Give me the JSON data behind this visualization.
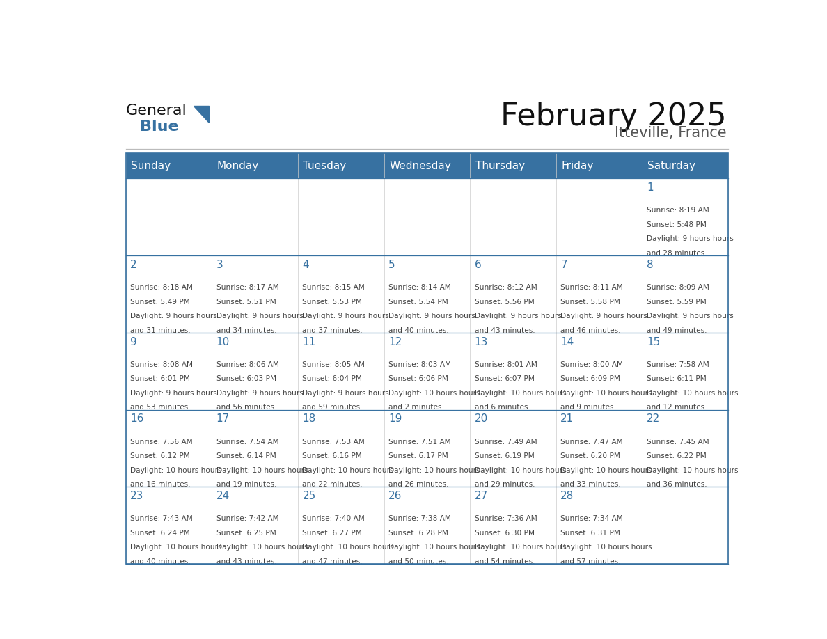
{
  "title": "February 2025",
  "subtitle": "Itteville, France",
  "days_of_week": [
    "Sunday",
    "Monday",
    "Tuesday",
    "Wednesday",
    "Thursday",
    "Friday",
    "Saturday"
  ],
  "header_bg": "#3771a1",
  "header_text_color": "#ffffff",
  "border_color": "#3771a1",
  "day_number_color": "#3771a1",
  "cell_text_color": "#444444",
  "title_color": "#111111",
  "subtitle_color": "#555555",
  "logo_general_color": "#111111",
  "logo_blue_color": "#3771a1",
  "calendar_data": [
    [
      null,
      null,
      null,
      null,
      null,
      null,
      {
        "day": 1,
        "sunrise": "8:19 AM",
        "sunset": "5:48 PM",
        "daylight": "9 hours and 28 minutes"
      }
    ],
    [
      {
        "day": 2,
        "sunrise": "8:18 AM",
        "sunset": "5:49 PM",
        "daylight": "9 hours and 31 minutes"
      },
      {
        "day": 3,
        "sunrise": "8:17 AM",
        "sunset": "5:51 PM",
        "daylight": "9 hours and 34 minutes"
      },
      {
        "day": 4,
        "sunrise": "8:15 AM",
        "sunset": "5:53 PM",
        "daylight": "9 hours and 37 minutes"
      },
      {
        "day": 5,
        "sunrise": "8:14 AM",
        "sunset": "5:54 PM",
        "daylight": "9 hours and 40 minutes"
      },
      {
        "day": 6,
        "sunrise": "8:12 AM",
        "sunset": "5:56 PM",
        "daylight": "9 hours and 43 minutes"
      },
      {
        "day": 7,
        "sunrise": "8:11 AM",
        "sunset": "5:58 PM",
        "daylight": "9 hours and 46 minutes"
      },
      {
        "day": 8,
        "sunrise": "8:09 AM",
        "sunset": "5:59 PM",
        "daylight": "9 hours and 49 minutes"
      }
    ],
    [
      {
        "day": 9,
        "sunrise": "8:08 AM",
        "sunset": "6:01 PM",
        "daylight": "9 hours and 53 minutes"
      },
      {
        "day": 10,
        "sunrise": "8:06 AM",
        "sunset": "6:03 PM",
        "daylight": "9 hours and 56 minutes"
      },
      {
        "day": 11,
        "sunrise": "8:05 AM",
        "sunset": "6:04 PM",
        "daylight": "9 hours and 59 minutes"
      },
      {
        "day": 12,
        "sunrise": "8:03 AM",
        "sunset": "6:06 PM",
        "daylight": "10 hours and 2 minutes"
      },
      {
        "day": 13,
        "sunrise": "8:01 AM",
        "sunset": "6:07 PM",
        "daylight": "10 hours and 6 minutes"
      },
      {
        "day": 14,
        "sunrise": "8:00 AM",
        "sunset": "6:09 PM",
        "daylight": "10 hours and 9 minutes"
      },
      {
        "day": 15,
        "sunrise": "7:58 AM",
        "sunset": "6:11 PM",
        "daylight": "10 hours and 12 minutes"
      }
    ],
    [
      {
        "day": 16,
        "sunrise": "7:56 AM",
        "sunset": "6:12 PM",
        "daylight": "10 hours and 16 minutes"
      },
      {
        "day": 17,
        "sunrise": "7:54 AM",
        "sunset": "6:14 PM",
        "daylight": "10 hours and 19 minutes"
      },
      {
        "day": 18,
        "sunrise": "7:53 AM",
        "sunset": "6:16 PM",
        "daylight": "10 hours and 22 minutes"
      },
      {
        "day": 19,
        "sunrise": "7:51 AM",
        "sunset": "6:17 PM",
        "daylight": "10 hours and 26 minutes"
      },
      {
        "day": 20,
        "sunrise": "7:49 AM",
        "sunset": "6:19 PM",
        "daylight": "10 hours and 29 minutes"
      },
      {
        "day": 21,
        "sunrise": "7:47 AM",
        "sunset": "6:20 PM",
        "daylight": "10 hours and 33 minutes"
      },
      {
        "day": 22,
        "sunrise": "7:45 AM",
        "sunset": "6:22 PM",
        "daylight": "10 hours and 36 minutes"
      }
    ],
    [
      {
        "day": 23,
        "sunrise": "7:43 AM",
        "sunset": "6:24 PM",
        "daylight": "10 hours and 40 minutes"
      },
      {
        "day": 24,
        "sunrise": "7:42 AM",
        "sunset": "6:25 PM",
        "daylight": "10 hours and 43 minutes"
      },
      {
        "day": 25,
        "sunrise": "7:40 AM",
        "sunset": "6:27 PM",
        "daylight": "10 hours and 47 minutes"
      },
      {
        "day": 26,
        "sunrise": "7:38 AM",
        "sunset": "6:28 PM",
        "daylight": "10 hours and 50 minutes"
      },
      {
        "day": 27,
        "sunrise": "7:36 AM",
        "sunset": "6:30 PM",
        "daylight": "10 hours and 54 minutes"
      },
      {
        "day": 28,
        "sunrise": "7:34 AM",
        "sunset": "6:31 PM",
        "daylight": "10 hours and 57 minutes"
      },
      null
    ]
  ]
}
